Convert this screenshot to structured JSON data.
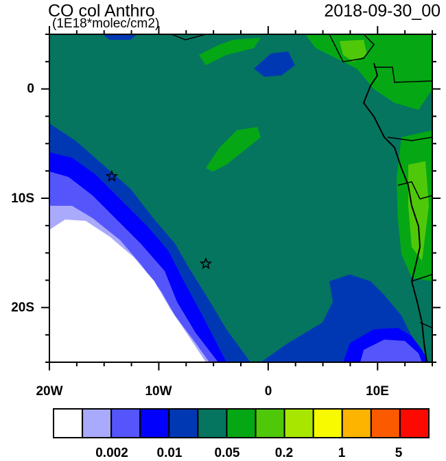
{
  "title": "CO col Anthro",
  "units": "(1E18*molec/cm2)",
  "date": "2018-09-30_00",
  "chart_data": {
    "type": "heatmap",
    "title": "CO col Anthro",
    "subtitle": "(1E18*molec/cm2)",
    "lon_range": [
      -20,
      15
    ],
    "lat_range": [
      -25,
      5
    ],
    "x_ticks": [
      "20W",
      "10W",
      "0",
      "10E"
    ],
    "y_ticks": [
      "0",
      "10S",
      "20S"
    ],
    "markers": [
      {
        "type": "star",
        "lon": -14.3,
        "lat": -8.0
      },
      {
        "type": "star",
        "lon": -5.7,
        "lat": -16.0
      }
    ],
    "colorbar": {
      "colors": [
        "#ffffff",
        "#aaaafc",
        "#5555fc",
        "#0000fc",
        "#0038b4",
        "#05755f",
        "#05a814",
        "#50c80a",
        "#a8e600",
        "#f8fa00",
        "#fcb400",
        "#fc5a00",
        "#fc0a00"
      ],
      "labels": [
        "0.002",
        "0.01",
        "0.05",
        "0.2",
        "1",
        "5"
      ]
    }
  }
}
